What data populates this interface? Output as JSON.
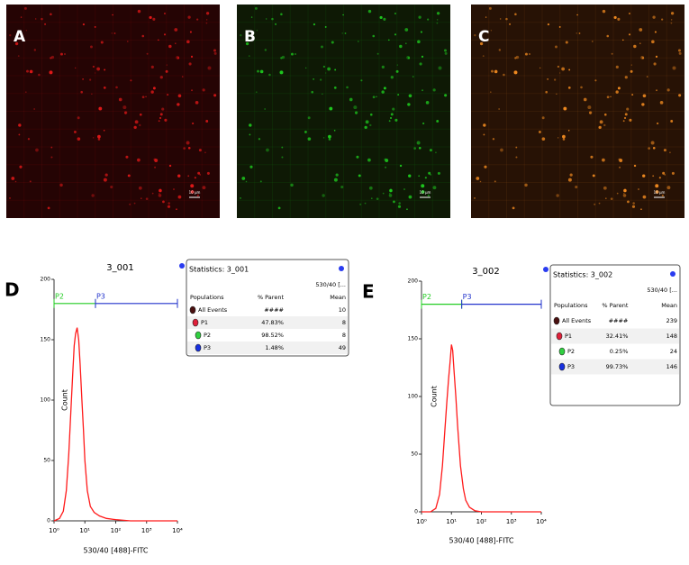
{
  "panels": [
    {
      "label": "A",
      "scale": "10 µm",
      "tint": "#e01818"
    },
    {
      "label": "B",
      "scale": "10 µm",
      "tint": "#1ec81e"
    },
    {
      "label": "C",
      "scale": "10 µm",
      "tint": "#f08a20"
    }
  ],
  "chart_data": [
    {
      "type": "line",
      "panel_label": "D",
      "title": "3_001",
      "x_label": "530/40 [488]-FITC",
      "y_label": "Count",
      "log_x": true,
      "color": "#ff1a1a",
      "x": [
        1,
        1.5,
        2,
        2.5,
        3,
        3.5,
        4,
        4.5,
        5,
        5.6,
        6.3,
        7,
        8,
        9,
        10,
        12,
        15,
        20,
        30,
        50,
        100,
        300,
        1000,
        10000
      ],
      "values": [
        0,
        2,
        8,
        25,
        55,
        90,
        120,
        145,
        155,
        160,
        150,
        130,
        100,
        75,
        50,
        25,
        12,
        7,
        4,
        2,
        1,
        0,
        0,
        0
      ],
      "xlim": [
        1,
        10000
      ],
      "ylim": [
        0,
        200
      ],
      "xticks": [
        {
          "value": 1,
          "label": "10⁰"
        },
        {
          "value": 10,
          "label": "10¹"
        },
        {
          "value": 100,
          "label": "10²"
        },
        {
          "value": 1000,
          "label": "10³"
        },
        {
          "value": 10000,
          "label": "10⁴"
        }
      ],
      "yticks": [
        0,
        50,
        100,
        150,
        200
      ],
      "gate_y": 180,
      "gates": [
        {
          "name": "P2",
          "color": "#22cc22",
          "range": [
            1,
            22
          ]
        },
        {
          "name": "P3",
          "color": "#2233cc",
          "range": [
            22,
            10000
          ]
        }
      ]
    },
    {
      "type": "line",
      "panel_label": "E",
      "title": "3_002",
      "x_label": "530/40 [488]-FITC",
      "y_label": "Count",
      "log_x": true,
      "color": "#ff1a1a",
      "x": [
        1,
        2,
        3,
        4,
        5,
        6,
        7,
        8,
        9,
        10,
        11,
        12,
        14,
        16,
        20,
        25,
        30,
        40,
        60,
        100,
        1000,
        10000
      ],
      "values": [
        0,
        0,
        3,
        15,
        40,
        70,
        95,
        115,
        130,
        145,
        140,
        125,
        100,
        75,
        40,
        20,
        10,
        4,
        1,
        0,
        0,
        0
      ],
      "xlim": [
        1,
        10000
      ],
      "ylim": [
        0,
        200
      ],
      "xticks": [
        {
          "value": 1,
          "label": "10⁰"
        },
        {
          "value": 10,
          "label": "10¹"
        },
        {
          "value": 100,
          "label": "10²"
        },
        {
          "value": 1000,
          "label": "10³"
        },
        {
          "value": 10000,
          "label": "10⁴"
        }
      ],
      "yticks": [
        0,
        50,
        100,
        150,
        200
      ],
      "gate_y": 180,
      "gates": [
        {
          "name": "P2",
          "color": "#22cc22",
          "range": [
            1,
            22
          ]
        },
        {
          "name": "P3",
          "color": "#2233cc",
          "range": [
            22,
            10000
          ]
        }
      ]
    }
  ],
  "stats": [
    {
      "title": "Statistics: 3_001",
      "channel": "530/40 [...",
      "headers": [
        "Populations",
        "% Parent",
        "Mean"
      ],
      "rows": [
        {
          "icon": "#4a1010",
          "cells": [
            "All Events",
            "####",
            "10"
          ]
        },
        {
          "icon": "#e0203a",
          "cells": [
            "P1",
            "47.83%",
            "8"
          ]
        },
        {
          "icon": "#30d040",
          "cells": [
            "P2",
            "98.52%",
            "8"
          ]
        },
        {
          "icon": "#1830e0",
          "cells": [
            "P3",
            "1.48%",
            "49"
          ]
        }
      ]
    },
    {
      "title": "Statistics: 3_002",
      "channel": "530/40 [...",
      "headers": [
        "Populations",
        "% Parent",
        "Mean"
      ],
      "rows": [
        {
          "icon": "#4a1010",
          "cells": [
            "All Events",
            "####",
            "239"
          ]
        },
        {
          "icon": "#e0203a",
          "cells": [
            "P1",
            "32.41%",
            "148"
          ]
        },
        {
          "icon": "#30d040",
          "cells": [
            "P2",
            "0.25%",
            "24"
          ]
        },
        {
          "icon": "#1830e0",
          "cells": [
            "P3",
            "99.73%",
            "146"
          ]
        }
      ]
    }
  ]
}
